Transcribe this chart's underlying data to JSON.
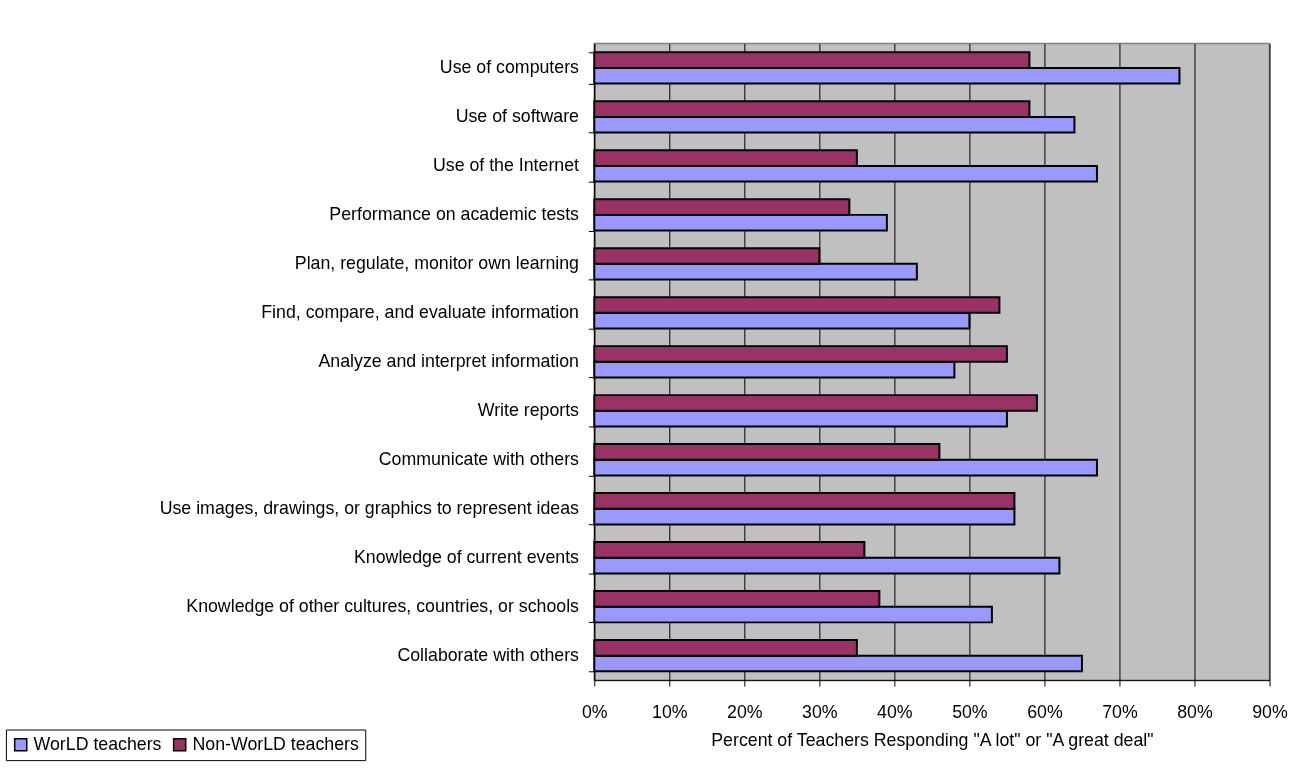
{
  "chart_data": {
    "type": "bar",
    "orientation": "horizontal",
    "categories": [
      "Use of computers",
      "Use of software",
      "Use of the Internet",
      "Performance on academic tests",
      "Plan, regulate, monitor own learning",
      "Find, compare, and evaluate information",
      "Analyze and interpret information",
      "Write reports",
      "Communicate with others",
      "Use images, drawings, or graphics to represent ideas",
      "Knowledge of current events",
      "Knowledge of other cultures, countries, or schools",
      "Collaborate with others"
    ],
    "series": [
      {
        "name": "WorLD teachers",
        "color": "#9999ff",
        "values": [
          78,
          64,
          67,
          39,
          43,
          50,
          48,
          55,
          67,
          56,
          62,
          53,
          65
        ]
      },
      {
        "name": "Non-WorLD teachers",
        "color": "#993366",
        "values": [
          58,
          58,
          35,
          34,
          30,
          54,
          55,
          59,
          46,
          56,
          36,
          38,
          35
        ]
      }
    ],
    "xlabel": "Percent of Teachers Responding \"A lot\" or \"A great deal\"",
    "xlim": [
      0,
      90
    ],
    "xticks": [
      {
        "value": 0,
        "label": "0%"
      },
      {
        "value": 10,
        "label": "10%"
      },
      {
        "value": 20,
        "label": "20%"
      },
      {
        "value": 30,
        "label": "30%"
      },
      {
        "value": 40,
        "label": "40%"
      },
      {
        "value": 50,
        "label": "50%"
      },
      {
        "value": 60,
        "label": "60%"
      },
      {
        "value": 70,
        "label": "70%"
      },
      {
        "value": 80,
        "label": "80%"
      },
      {
        "value": 90,
        "label": "90%"
      }
    ],
    "grid": "x",
    "legend": "bottom left"
  }
}
